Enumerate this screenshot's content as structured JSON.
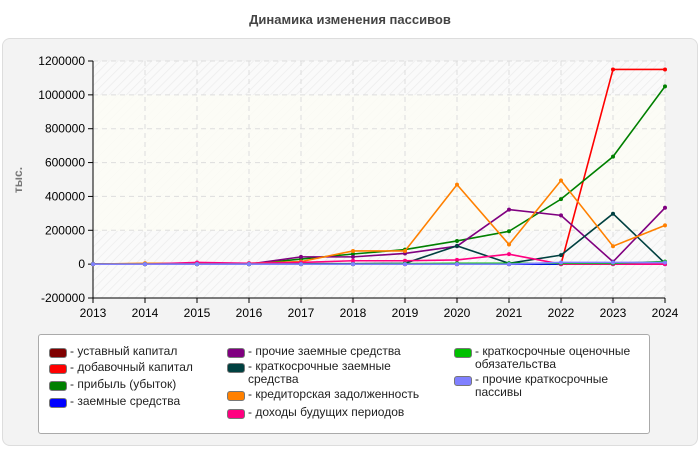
{
  "chart_data": {
    "type": "line",
    "title": "Динамика изменения пассивов",
    "ylabel": "тыс.",
    "xlabel": "",
    "x": [
      2013,
      2014,
      2015,
      2016,
      2017,
      2018,
      2019,
      2020,
      2021,
      2022,
      2023,
      2024
    ],
    "ylim": [
      -200000,
      1200000
    ],
    "yticks": [
      -200000,
      0,
      200000,
      400000,
      600000,
      800000,
      1000000,
      1200000
    ],
    "ytick_labels": [
      "-200000",
      "0",
      "200000",
      "400000",
      "600000",
      "800000",
      "1000000",
      "1200000"
    ],
    "xtick_labels": [
      "2013",
      "2014",
      "2015",
      "2016",
      "2017",
      "2018",
      "2019",
      "2020",
      "2021",
      "2022",
      "2023",
      "2024"
    ],
    "grid": true,
    "legend_position": "bottom",
    "series": [
      {
        "name": "- уставный капитал",
        "color": "#800000",
        "values": [
          0,
          0,
          0,
          0,
          0,
          0,
          0,
          0,
          0,
          0,
          0,
          0
        ]
      },
      {
        "name": "- добавочный капитал",
        "color": "#ff0000",
        "values": [
          0,
          0,
          0,
          0,
          0,
          0,
          0,
          0,
          0,
          0,
          1150000,
          1150000
        ]
      },
      {
        "name": "- прибыль (убыток)",
        "color": "#008000",
        "values": [
          0,
          0,
          0,
          0,
          30000,
          60000,
          86000,
          137000,
          194000,
          384000,
          635000,
          1050000
        ]
      },
      {
        "name": "- заемные средства",
        "color": "#0000ff",
        "values": [
          0,
          0,
          0,
          0,
          0,
          0,
          0,
          0,
          0,
          0,
          0,
          0
        ]
      },
      {
        "name": "- прочие заемные средства",
        "color": "#800080",
        "values": [
          0,
          0,
          0,
          0,
          43000,
          43000,
          63000,
          106000,
          322000,
          288000,
          14000,
          333000
        ]
      },
      {
        "name": "- краткосрочные заемные средства",
        "color": "#004040",
        "values": [
          0,
          0,
          0,
          0,
          3000,
          3000,
          5000,
          108000,
          5000,
          53000,
          298000,
          5000
        ]
      },
      {
        "name": "- кредиторская задолженность",
        "color": "#ff8000",
        "values": [
          0,
          5000,
          5000,
          5000,
          15000,
          78000,
          78000,
          470000,
          116000,
          494000,
          106000,
          229000
        ]
      },
      {
        "name": "- доходы будущих периодов",
        "color": "#ff0080",
        "values": [
          0,
          0,
          10000,
          5000,
          10000,
          20000,
          20000,
          25000,
          59000,
          0,
          0,
          0
        ]
      },
      {
        "name": "- краткосрочные оценочные обязательства",
        "color": "#00c000",
        "values": [
          0,
          0,
          0,
          0,
          0,
          0,
          3000,
          5000,
          5000,
          5000,
          5000,
          15000
        ]
      },
      {
        "name": "- прочие краткосрочные пассивы",
        "color": "#8080ff",
        "values": [
          0,
          0,
          0,
          0,
          0,
          0,
          0,
          0,
          0,
          10000,
          10000,
          10000
        ]
      }
    ]
  }
}
